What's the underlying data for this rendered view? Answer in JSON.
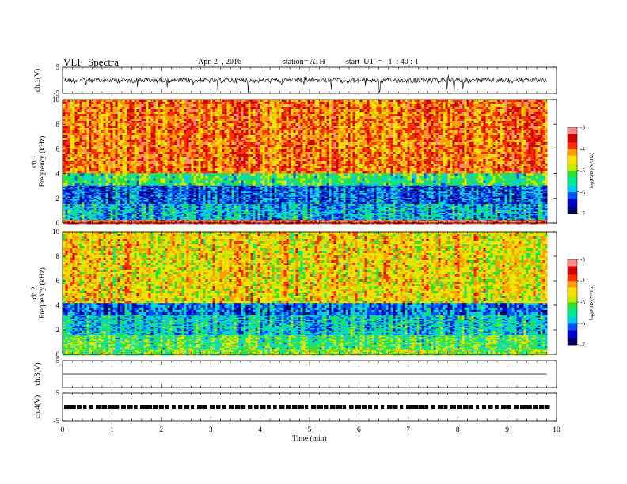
{
  "header": {
    "title": "VLF  Spectra",
    "date": "Apr. 2  , 2016",
    "station": "station= ATH",
    "start": "start  UT  =   1  : 40 : 1"
  },
  "colors": {
    "colormap": [
      "#000060",
      "#0000c8",
      "#0050ff",
      "#00c8ff",
      "#00e890",
      "#30e030",
      "#c8e800",
      "#ffe000",
      "#ffa000",
      "#ff3000",
      "#d00000",
      "#ff8a8a",
      "#ffffff"
    ]
  },
  "chart_data": [
    {
      "type": "line",
      "panel": "ch1-waveform",
      "ylabel": "ch.1(V)",
      "ylim": [
        -5,
        5
      ],
      "yticks": [
        "5",
        "-5"
      ],
      "xlim": [
        0,
        10
      ],
      "signal_extent_min": 9.8,
      "baseline": 0
    },
    {
      "type": "heatmap",
      "panel": "ch1-spectrogram",
      "ylabel": "ch.1\nFrequency (kHz)",
      "ylabel_lines": [
        "ch.1",
        "Frequency  (kHz)"
      ],
      "ylim": [
        0,
        10
      ],
      "yticks": [
        "0",
        "2",
        "4",
        "6",
        "8",
        "10"
      ],
      "xlim": [
        0,
        9.8
      ],
      "bands": [
        {
          "from": 0,
          "to": 0.3,
          "level": -3.5
        },
        {
          "from": 0.3,
          "to": 1.6,
          "level": -5.8
        },
        {
          "from": 1.6,
          "to": 3.1,
          "level": -6.2
        },
        {
          "from": 3.1,
          "to": 4.2,
          "level": -5.3
        },
        {
          "from": 4.2,
          "to": 10,
          "level": -4.0
        }
      ],
      "colorbar": {
        "label": "log(PSD)(V²/Hz)",
        "range": [
          -7,
          -3
        ],
        "ticks": [
          "-3",
          "-4",
          "-5",
          "-6",
          "-7"
        ]
      }
    },
    {
      "type": "heatmap",
      "panel": "ch2-spectrogram",
      "ylabel_lines": [
        "ch.2",
        "Frequency  (kHz)"
      ],
      "ylim": [
        0,
        10
      ],
      "yticks": [
        "0",
        "2",
        "4",
        "6",
        "8",
        "10"
      ],
      "xlim": [
        0,
        9.8
      ],
      "bands": [
        {
          "from": 0,
          "to": 0.5,
          "level": -5.0
        },
        {
          "from": 0.5,
          "to": 1.6,
          "level": -5.2
        },
        {
          "from": 1.6,
          "to": 3.3,
          "level": -5.7
        },
        {
          "from": 3.3,
          "to": 4.2,
          "level": -6.1
        },
        {
          "from": 4.2,
          "to": 10,
          "level": -4.5
        }
      ],
      "colorbar": {
        "label": "log(PSD)(V²/Hz)",
        "range": [
          -7,
          -3
        ],
        "ticks": [
          "-3",
          "-4",
          "-5",
          "-6",
          "-7"
        ]
      }
    },
    {
      "type": "line",
      "panel": "ch3-waveform",
      "ylabel": "ch.3(V)",
      "ylim": [
        -5,
        5
      ],
      "yticks": [
        "5"
      ],
      "xlim": [
        0,
        10
      ],
      "signal_extent_min": 9.8,
      "baseline": 0
    },
    {
      "type": "line",
      "panel": "ch4-waveform",
      "ylabel": "ch.4(V)",
      "ylim": [
        -5,
        5
      ],
      "yticks": [
        "5",
        "-5"
      ],
      "xlim": [
        0,
        10
      ],
      "signal_extent_min": 9.8,
      "baseline": 0
    }
  ],
  "xaxis": {
    "label": "Time  (min)",
    "ticks": [
      "0",
      "1",
      "2",
      "3",
      "4",
      "5",
      "6",
      "7",
      "8",
      "9",
      "10"
    ]
  }
}
